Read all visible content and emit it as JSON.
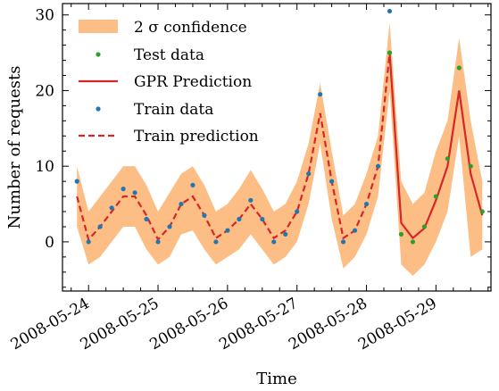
{
  "chart_data": {
    "type": "line",
    "xlabel": "Time",
    "ylabel": "Number of requests",
    "ylim": [
      -6.5,
      31.5
    ],
    "yticks": [
      0,
      10,
      20,
      30
    ],
    "xlim": [
      "2008-05-23 15:00",
      "2008-05-29 19:00"
    ],
    "xticks": [
      "2008-05-24",
      "2008-05-25",
      "2008-05-26",
      "2008-05-27",
      "2008-05-28",
      "2008-05-29"
    ],
    "x_tick_labels": [
      "2008-05-24",
      "2008-05-25",
      "2008-05-26",
      "2008-05-27",
      "2008-05-28",
      "2008-05-29"
    ],
    "grid": false,
    "legend": {
      "position": "top-left",
      "entries": [
        "2 σ confidence",
        "Test data",
        "GPR Prediction",
        "Train data",
        "Train prediction"
      ]
    },
    "colors": {
      "confidence": "#fdbe85",
      "test_data": "#2ca02c",
      "gpr_prediction": "#d62728",
      "train_data": "#1f77b4",
      "train_prediction": "#d62728"
    },
    "train_prediction": {
      "x": [
        "2008-05-23 20:00",
        "2008-05-24 00:00",
        "2008-05-24 04:00",
        "2008-05-24 08:00",
        "2008-05-24 12:00",
        "2008-05-24 16:00",
        "2008-05-24 20:00",
        "2008-05-25 00:00",
        "2008-05-25 04:00",
        "2008-05-25 08:00",
        "2008-05-25 12:00",
        "2008-05-25 16:00",
        "2008-05-25 20:00",
        "2008-05-26 00:00",
        "2008-05-26 04:00",
        "2008-05-26 08:00",
        "2008-05-26 12:00",
        "2008-05-26 16:00",
        "2008-05-26 20:00",
        "2008-05-27 00:00",
        "2008-05-27 04:00",
        "2008-05-27 08:00",
        "2008-05-27 12:00",
        "2008-05-27 16:00",
        "2008-05-27 20:00",
        "2008-05-28 00:00",
        "2008-05-28 04:00",
        "2008-05-28 08:00"
      ],
      "y": [
        6.0,
        0.3,
        2.0,
        4.0,
        6.0,
        6.0,
        3.5,
        0.3,
        2.0,
        5.0,
        6.0,
        3.5,
        0.5,
        1.5,
        3.0,
        5.0,
        3.0,
        0.5,
        1.5,
        4.0,
        9.0,
        17.0,
        8.0,
        0.5,
        1.5,
        5.0,
        10.0,
        25.0
      ]
    },
    "confidence_band": {
      "x": [
        "2008-05-23 20:00",
        "2008-05-24 00:00",
        "2008-05-24 04:00",
        "2008-05-24 08:00",
        "2008-05-24 12:00",
        "2008-05-24 16:00",
        "2008-05-24 20:00",
        "2008-05-25 00:00",
        "2008-05-25 04:00",
        "2008-05-25 08:00",
        "2008-05-25 12:00",
        "2008-05-25 16:00",
        "2008-05-25 20:00",
        "2008-05-26 00:00",
        "2008-05-26 04:00",
        "2008-05-26 08:00",
        "2008-05-26 12:00",
        "2008-05-26 16:00",
        "2008-05-26 20:00",
        "2008-05-27 00:00",
        "2008-05-27 04:00",
        "2008-05-27 08:00",
        "2008-05-27 12:00",
        "2008-05-27 16:00",
        "2008-05-27 20:00",
        "2008-05-28 00:00",
        "2008-05-28 04:00",
        "2008-05-28 08:00",
        "2008-05-28 12:00",
        "2008-05-28 16:00",
        "2008-05-28 20:00",
        "2008-05-29 00:00",
        "2008-05-29 04:00",
        "2008-05-29 08:00",
        "2008-05-29 12:00",
        "2008-05-29 16:00"
      ],
      "lower": [
        2.0,
        -3.0,
        -2.0,
        0.0,
        2.0,
        2.0,
        -1.0,
        -3.0,
        -2.0,
        1.0,
        1.5,
        -1.0,
        -3.0,
        -2.0,
        -1.0,
        1.0,
        -1.0,
        -3.0,
        -2.0,
        0.0,
        5.0,
        13.0,
        3.0,
        -3.5,
        -2.0,
        1.0,
        6.0,
        20.0,
        -3.0,
        -4.5,
        -3.0,
        0.0,
        4.0,
        14.0,
        -2.0,
        -1.0
      ],
      "upper": [
        10.0,
        4.0,
        6.0,
        8.0,
        10.0,
        10.0,
        7.5,
        4.0,
        6.5,
        9.0,
        10.0,
        7.5,
        4.0,
        5.0,
        7.0,
        9.5,
        7.0,
        4.0,
        5.0,
        8.0,
        13.0,
        21.0,
        12.0,
        3.5,
        5.0,
        9.0,
        14.0,
        29.0,
        8.0,
        5.0,
        6.5,
        12.0,
        16.0,
        27.0,
        16.0,
        8.0
      ]
    },
    "gpr_prediction": {
      "x": [
        "2008-05-28 08:00",
        "2008-05-28 12:00",
        "2008-05-28 16:00",
        "2008-05-28 20:00",
        "2008-05-29 00:00",
        "2008-05-29 04:00",
        "2008-05-29 08:00",
        "2008-05-29 12:00",
        "2008-05-29 16:00"
      ],
      "y": [
        25.0,
        2.5,
        0.5,
        1.8,
        5.5,
        10.0,
        20.0,
        9.0,
        3.5
      ]
    },
    "train_data": {
      "x": [
        "2008-05-23 20:00",
        "2008-05-24 00:00",
        "2008-05-24 04:00",
        "2008-05-24 08:00",
        "2008-05-24 12:00",
        "2008-05-24 16:00",
        "2008-05-24 20:00",
        "2008-05-25 00:00",
        "2008-05-25 04:00",
        "2008-05-25 08:00",
        "2008-05-25 12:00",
        "2008-05-25 16:00",
        "2008-05-25 20:00",
        "2008-05-26 00:00",
        "2008-05-26 04:00",
        "2008-05-26 08:00",
        "2008-05-26 12:00",
        "2008-05-26 16:00",
        "2008-05-26 20:00",
        "2008-05-27 00:00",
        "2008-05-27 04:00",
        "2008-05-27 08:00",
        "2008-05-27 12:00",
        "2008-05-27 16:00",
        "2008-05-27 20:00",
        "2008-05-28 00:00",
        "2008-05-28 04:00",
        "2008-05-28 08:00"
      ],
      "y": [
        8.0,
        0.0,
        2.0,
        4.5,
        7.0,
        6.5,
        3.0,
        0.0,
        2.0,
        5.0,
        7.5,
        3.5,
        0.0,
        1.5,
        3.0,
        5.5,
        3.0,
        0.0,
        1.0,
        4.0,
        9.0,
        19.5,
        8.0,
        0.0,
        1.5,
        5.0,
        10.0,
        30.5
      ]
    },
    "test_data": {
      "x": [
        "2008-05-28 08:00",
        "2008-05-28 12:00",
        "2008-05-28 16:00",
        "2008-05-28 20:00",
        "2008-05-29 00:00",
        "2008-05-29 04:00",
        "2008-05-29 08:00",
        "2008-05-29 12:00",
        "2008-05-29 16:00"
      ],
      "y": [
        25.0,
        1.0,
        0.0,
        2.0,
        6.0,
        11.0,
        23.0,
        10.0,
        4.0
      ]
    }
  }
}
